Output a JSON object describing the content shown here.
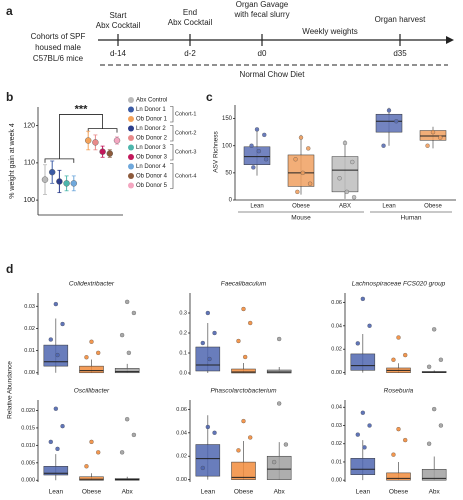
{
  "panel_labels": [
    "a",
    "b",
    "c",
    "d"
  ],
  "timeline": {
    "cohort_text": [
      "Cohorts of SPF",
      "housed male",
      "C57BL/6 mice"
    ],
    "events": [
      {
        "text": [
          "Start",
          "Abx Cocktail"
        ],
        "day": "d-14"
      },
      {
        "text": [
          "End",
          "Abx Cocktail"
        ],
        "day": "d-2"
      },
      {
        "text": [
          "Organ Gavage",
          "with fecal slurry"
        ],
        "day": "d0"
      },
      {
        "text": [
          "Organ harvest"
        ],
        "day": "d35"
      }
    ],
    "weekly": "Weekly weights",
    "diet": "Normal Chow Diet"
  },
  "relative_abundance_label": "Relative Abundance",
  "chart_data": [
    {
      "type": "dot_error",
      "ylabel": "% weight gain at week 4",
      "annotation": "***",
      "ylim": [
        96,
        125
      ],
      "yticks": [
        100,
        110,
        120
      ],
      "series": [
        {
          "name": "Abx Control",
          "color": "#b9b9b9",
          "values": [
            105.5
          ],
          "errors": [
            4
          ]
        },
        {
          "name": "Ln Donor 1",
          "color": "#3b5ba5",
          "values": [
            107.5
          ],
          "errors": [
            3
          ]
        },
        {
          "name": "Ob Donor 1",
          "color": "#f4a259",
          "values": [
            116
          ],
          "errors": [
            2.5
          ]
        },
        {
          "name": "Ln Donor 2",
          "color": "#2c3e8c",
          "values": [
            105
          ],
          "errors": [
            3
          ]
        },
        {
          "name": "Ob Donor 2",
          "color": "#e88a8a",
          "values": [
            115.5
          ],
          "errors": [
            2
          ]
        },
        {
          "name": "Ln Donor 3",
          "color": "#4db6ac",
          "values": [
            104.5
          ],
          "errors": [
            2
          ]
        },
        {
          "name": "Ob Donor 3",
          "color": "#c2185b",
          "values": [
            113
          ],
          "errors": [
            1.5
          ]
        },
        {
          "name": "Ln Donor 4",
          "color": "#6fa8dc",
          "values": [
            104.5
          ],
          "errors": [
            2
          ]
        },
        {
          "name": "Ob Donor 4",
          "color": "#8d5a3b",
          "values": [
            112.5
          ],
          "errors": [
            1
          ]
        },
        {
          "name": "Ob Donor 5",
          "color": "#f4a6c0",
          "values": [
            116
          ],
          "errors": [
            1
          ]
        }
      ],
      "cohorts": [
        "Cohort-1",
        "Cohort-2",
        "Cohort-3",
        "Cohort-4"
      ]
    },
    {
      "type": "box",
      "ylabel": "ASV Richness",
      "ylim": [
        0,
        175
      ],
      "yticks": [
        0,
        50,
        100,
        150
      ],
      "categories": [
        "Lean",
        "Obese",
        "ABX",
        "Lean",
        "Obese"
      ],
      "groups": [
        "Mouse",
        "Human"
      ],
      "colors": [
        "#5b6fb5",
        "#f0a060",
        "#bdbdbd",
        "#5b6fb5",
        "#f0a060"
      ],
      "boxes": [
        {
          "q1": 65,
          "median": 80,
          "q3": 98,
          "whisker_low": 45,
          "whisker_high": 130,
          "points": [
            130,
            120,
            100,
            90,
            75,
            60
          ]
        },
        {
          "q1": 25,
          "median": 50,
          "q3": 83,
          "whisker_low": 10,
          "whisker_high": 120,
          "points": [
            115,
            95,
            75,
            50,
            30,
            15
          ]
        },
        {
          "q1": 15,
          "median": 55,
          "q3": 80,
          "whisker_low": 2,
          "whisker_high": 110,
          "points": [
            105,
            70,
            40,
            15,
            5
          ]
        },
        {
          "q1": 125,
          "median": 145,
          "q3": 158,
          "whisker_low": 100,
          "whisker_high": 170,
          "points": [
            165,
            145,
            100
          ]
        },
        {
          "q1": 110,
          "median": 118,
          "q3": 128,
          "whisker_low": 95,
          "whisker_high": 135,
          "points": [
            125,
            115,
            100
          ]
        }
      ]
    },
    {
      "type": "box",
      "title": "Colidextribacter",
      "categories": [
        null,
        null,
        null
      ],
      "colors": [
        "#4f66b0",
        "#f28c3c",
        "#a0a0a0"
      ],
      "ylim": [
        -0.001,
        0.036
      ],
      "yticks": [
        {
          "value": 0,
          "label": "0.00"
        },
        0.01,
        0.02,
        0.03
      ],
      "boxes": [
        {
          "q1": 0.003,
          "median": 0.005,
          "q3": 0.0125,
          "whisker_low": 0,
          "whisker_high": 0.0245,
          "points": [
            0.031,
            0.022,
            0.015,
            0.008
          ]
        },
        {
          "q1": 0,
          "median": 0.001,
          "q3": 0.003,
          "whisker_low": 0,
          "whisker_high": 0.006,
          "points": [
            0.014,
            0.009,
            0.007
          ]
        },
        {
          "q1": 0,
          "median": 0.0005,
          "q3": 0.002,
          "whisker_low": 0,
          "whisker_high": 0.004,
          "points": [
            0.032,
            0.027,
            0.017,
            0.009
          ]
        }
      ]
    },
    {
      "type": "box",
      "title": "Faecalibaculum",
      "categories": [
        null,
        null,
        null
      ],
      "colors": [
        "#4f66b0",
        "#f28c3c",
        "#a0a0a0"
      ],
      "ylim": [
        -0.01,
        0.4
      ],
      "yticks": [
        {
          "value": 0,
          "label": "0.0"
        },
        0.1,
        0.2,
        0.3
      ],
      "boxes": [
        {
          "q1": 0.01,
          "median": 0.04,
          "q3": 0.13,
          "whisker_low": 0,
          "whisker_high": 0.25,
          "points": [
            0.3,
            0.2,
            0.15,
            0.07
          ]
        },
        {
          "q1": 0,
          "median": 0.005,
          "q3": 0.02,
          "whisker_low": 0,
          "whisker_high": 0.05,
          "points": [
            0.32,
            0.25,
            0.16,
            0.08
          ]
        },
        {
          "q1": 0,
          "median": 0.005,
          "q3": 0.015,
          "whisker_low": 0,
          "whisker_high": 0.03,
          "points": [
            0.17
          ]
        }
      ]
    },
    {
      "type": "box",
      "title": "Lachnospiraceae FCS020 group",
      "categories": [
        null,
        null,
        null
      ],
      "colors": [
        "#4f66b0",
        "#f28c3c",
        "#a0a0a0"
      ],
      "ylim": [
        -0.002,
        0.068
      ],
      "yticks": [
        {
          "value": 0,
          "label": "0.00"
        },
        0.02,
        0.04,
        0.06
      ],
      "boxes": [
        {
          "q1": 0.002,
          "median": 0.006,
          "q3": 0.016,
          "whisker_low": 0,
          "whisker_high": 0.033,
          "points": [
            0.063,
            0.04,
            0.025
          ]
        },
        {
          "q1": 0,
          "median": 0.002,
          "q3": 0.004,
          "whisker_low": 0,
          "whisker_high": 0.008,
          "points": [
            0.03,
            0.015,
            0.011
          ]
        },
        {
          "q1": 0,
          "median": 0.0005,
          "q3": 0.001,
          "whisker_low": 0,
          "whisker_high": 0.002,
          "points": [
            0.037,
            0.011,
            0.005
          ]
        }
      ]
    },
    {
      "type": "box",
      "title": "Oscillibacter",
      "categories": [
        "Lean",
        "Obese",
        "Abx"
      ],
      "colors": [
        "#4f66b0",
        "#f28c3c",
        "#a0a0a0"
      ],
      "ylim": [
        -0.0005,
        0.023
      ],
      "yticks": [
        {
          "value": 0,
          "label": "0.000"
        },
        0.005,
        {
          "value": 0.01,
          "label": "0.010"
        },
        0.015,
        {
          "value": 0.02,
          "label": "0.020"
        }
      ],
      "boxes": [
        {
          "q1": 0.0015,
          "median": 0.002,
          "q3": 0.004,
          "whisker_low": 0,
          "whisker_high": 0.0075,
          "points": [
            0.0205,
            0.0155,
            0.011,
            0.009
          ]
        },
        {
          "q1": 0,
          "median": 0.0003,
          "q3": 0.001,
          "whisker_low": 0,
          "whisker_high": 0.002,
          "points": [
            0.011,
            0.008,
            0.004
          ]
        },
        {
          "q1": 0,
          "median": 0.0002,
          "q3": 0.0005,
          "whisker_low": 0,
          "whisker_high": 0.001,
          "points": [
            0.0175,
            0.013,
            0.008
          ]
        }
      ]
    },
    {
      "type": "box",
      "title": "Phascolarctobacterium",
      "categories": [
        "Lean",
        "Obese",
        "Abx"
      ],
      "colors": [
        "#4f66b0",
        "#f28c3c",
        "#a0a0a0"
      ],
      "ylim": [
        -0.002,
        0.068
      ],
      "yticks": [
        {
          "value": 0,
          "label": "0.00"
        },
        0.02,
        0.04,
        0.06
      ],
      "boxes": [
        {
          "q1": 0.003,
          "median": 0.018,
          "q3": 0.03,
          "whisker_low": 0,
          "whisker_high": 0.055,
          "points": [
            0.045,
            0.04,
            0.01
          ]
        },
        {
          "q1": 0,
          "median": 0.002,
          "q3": 0.015,
          "whisker_low": 0,
          "whisker_high": 0.033,
          "points": [
            0.05,
            0.036,
            0.025
          ]
        },
        {
          "q1": 0,
          "median": 0.009,
          "q3": 0.02,
          "whisker_low": 0,
          "whisker_high": 0.032,
          "points": [
            0.065,
            0.03,
            0.015
          ]
        }
      ]
    },
    {
      "type": "box",
      "title": "Roseburia",
      "categories": [
        "Lean",
        "Obese",
        "Abx"
      ],
      "colors": [
        "#4f66b0",
        "#f28c3c",
        "#a0a0a0"
      ],
      "ylim": [
        -0.001,
        0.044
      ],
      "yticks": [
        {
          "value": 0,
          "label": "0.00"
        },
        0.01,
        0.02,
        0.03,
        0.04
      ],
      "boxes": [
        {
          "q1": 0.003,
          "median": 0.006,
          "q3": 0.012,
          "whisker_low": 0,
          "whisker_high": 0.022,
          "points": [
            0.037,
            0.03,
            0.025,
            0.018
          ]
        },
        {
          "q1": 0,
          "median": 0.001,
          "q3": 0.004,
          "whisker_low": 0,
          "whisker_high": 0.01,
          "points": [
            0.028,
            0.022,
            0.014
          ]
        },
        {
          "q1": 0,
          "median": 0.001,
          "q3": 0.006,
          "whisker_low": 0,
          "whisker_high": 0.013,
          "points": [
            0.039,
            0.03,
            0.02
          ]
        }
      ]
    }
  ]
}
